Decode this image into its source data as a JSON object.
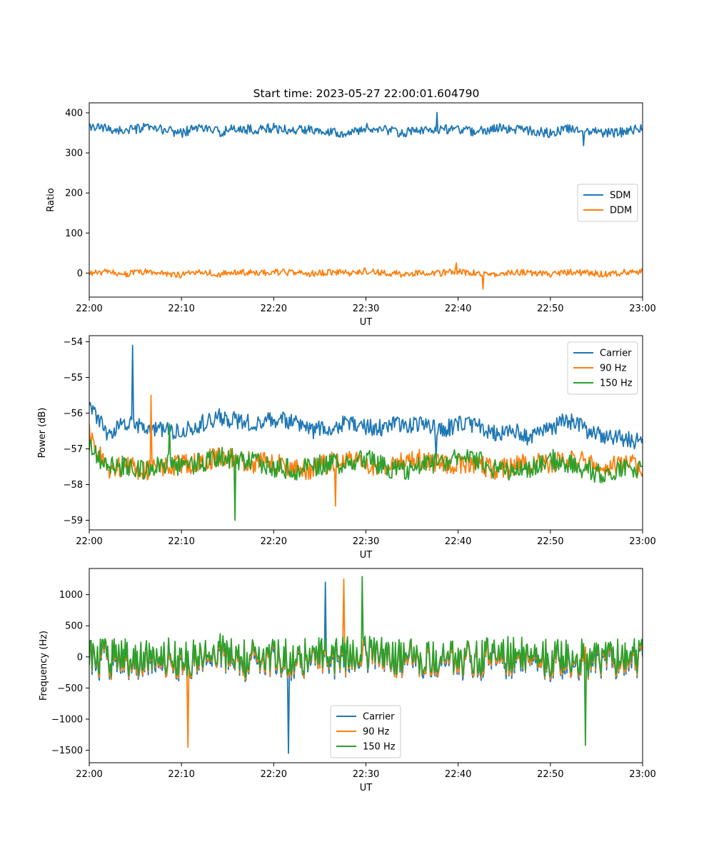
{
  "figure_title": "Start time: 2023-05-27 22:00:01.604790",
  "colors": {
    "blue": "#1f77b4",
    "orange": "#ff7f0e",
    "green": "#2ca02c"
  },
  "chart_data": [
    {
      "type": "line",
      "title": "Start time: 2023-05-27 22:00:01.604790",
      "xlabel": "UT",
      "ylabel": "Ratio",
      "x_range": [
        "22:00",
        "23:00"
      ],
      "xticks": [
        "22:00",
        "22:10",
        "22:20",
        "22:30",
        "22:40",
        "22:50",
        "23:00"
      ],
      "ylim": [
        -60,
        425
      ],
      "yticks": [
        0,
        100,
        200,
        300,
        400
      ],
      "ytick_labels": [
        "0",
        "100",
        "200",
        "300",
        "400"
      ],
      "legend_position": "center-right",
      "grid": false,
      "series": [
        {
          "name": "SDM",
          "color": "#1f77b4",
          "x_minutes": [
            0,
            2,
            4,
            6,
            8,
            10,
            12,
            14,
            16,
            18,
            20,
            22,
            24,
            26,
            28,
            30,
            32,
            34,
            36,
            38,
            40,
            42,
            44,
            46,
            48,
            50,
            52,
            54,
            56,
            58,
            60
          ],
          "values": [
            365,
            360,
            355,
            362,
            358,
            350,
            365,
            352,
            360,
            358,
            362,
            355,
            360,
            355,
            348,
            362,
            358,
            350,
            355,
            360,
            358,
            352,
            362,
            360,
            355,
            350,
            360,
            358,
            350,
            352,
            362
          ],
          "noise": 12,
          "peak_max": 401,
          "peak_min": 318
        },
        {
          "name": "DDM",
          "color": "#ff7f0e",
          "x_minutes": [
            0,
            2,
            4,
            6,
            8,
            10,
            12,
            14,
            16,
            18,
            20,
            22,
            24,
            26,
            28,
            30,
            32,
            34,
            36,
            38,
            40,
            42,
            44,
            46,
            48,
            50,
            52,
            54,
            56,
            58,
            60
          ],
          "values": [
            0,
            2,
            -2,
            3,
            0,
            -5,
            5,
            -3,
            2,
            0,
            3,
            0,
            -2,
            2,
            0,
            5,
            0,
            -3,
            2,
            0,
            3,
            0,
            -2,
            3,
            0,
            -3,
            2,
            0,
            -3,
            2,
            3
          ],
          "noise": 8,
          "peak_max": 25,
          "peak_min": -40
        }
      ]
    },
    {
      "type": "line",
      "xlabel": "UT",
      "ylabel": "Power (dB)",
      "x_range": [
        "22:00",
        "23:00"
      ],
      "xticks": [
        "22:00",
        "22:10",
        "22:20",
        "22:30",
        "22:40",
        "22:50",
        "23:00"
      ],
      "ylim": [
        -59.27,
        -53.83
      ],
      "yticks": [
        -59,
        -58,
        -57,
        -56,
        -55,
        -54
      ],
      "ytick_labels": [
        "−59",
        "−58",
        "−57",
        "−56",
        "−55",
        "−54"
      ],
      "legend_position": "top-right",
      "grid": false,
      "series": [
        {
          "name": "Carrier",
          "color": "#1f77b4",
          "x_minutes": [
            0,
            2,
            4,
            6,
            8,
            10,
            12,
            14,
            16,
            18,
            20,
            22,
            24,
            26,
            28,
            30,
            32,
            34,
            36,
            38,
            40,
            42,
            44,
            46,
            48,
            50,
            52,
            54,
            56,
            58,
            60
          ],
          "values": [
            -55.8,
            -56.6,
            -56.3,
            -56.4,
            -56.5,
            -56.5,
            -56.3,
            -56.1,
            -56.2,
            -56.3,
            -56.2,
            -56.2,
            -56.5,
            -56.4,
            -56.3,
            -56.4,
            -56.4,
            -56.3,
            -56.3,
            -56.5,
            -56.3,
            -56.3,
            -56.6,
            -56.5,
            -56.7,
            -56.4,
            -56.2,
            -56.5,
            -56.7,
            -56.7,
            -56.8
          ],
          "noise": 0.25,
          "peak_max": -54.1,
          "peak_min": -57.3
        },
        {
          "name": "90 Hz",
          "color": "#ff7f0e",
          "x_minutes": [
            0,
            2,
            4,
            6,
            8,
            10,
            12,
            14,
            16,
            18,
            20,
            22,
            24,
            26,
            28,
            30,
            32,
            34,
            36,
            38,
            40,
            42,
            44,
            46,
            48,
            50,
            52,
            54,
            56,
            58,
            60
          ],
          "values": [
            -56.6,
            -57.6,
            -57.5,
            -57.6,
            -57.5,
            -57.4,
            -57.4,
            -57.2,
            -57.3,
            -57.4,
            -57.4,
            -57.5,
            -57.6,
            -57.4,
            -57.3,
            -57.4,
            -57.5,
            -57.4,
            -57.3,
            -57.4,
            -57.4,
            -57.4,
            -57.6,
            -57.5,
            -57.4,
            -57.4,
            -57.3,
            -57.4,
            -57.5,
            -57.4,
            -57.5
          ],
          "noise": 0.3,
          "peak_max": -55.5,
          "peak_min": -58.6
        },
        {
          "name": "150 Hz",
          "color": "#2ca02c",
          "x_minutes": [
            0,
            2,
            4,
            6,
            8,
            10,
            12,
            14,
            16,
            18,
            20,
            22,
            24,
            26,
            28,
            30,
            32,
            34,
            36,
            38,
            40,
            42,
            44,
            46,
            48,
            50,
            52,
            54,
            56,
            58,
            60
          ],
          "values": [
            -57.0,
            -57.5,
            -57.5,
            -57.6,
            -57.4,
            -57.5,
            -57.4,
            -57.2,
            -57.3,
            -57.4,
            -57.5,
            -57.6,
            -57.5,
            -57.4,
            -57.4,
            -57.3,
            -57.5,
            -57.6,
            -57.5,
            -57.4,
            -57.2,
            -57.3,
            -57.6,
            -57.7,
            -57.5,
            -57.3,
            -57.4,
            -57.6,
            -57.7,
            -57.6,
            -57.6
          ],
          "noise": 0.3,
          "peak_max": -56.3,
          "peak_min": -59.0
        }
      ]
    },
    {
      "type": "line",
      "xlabel": "UT",
      "ylabel": "Frequency (Hz)",
      "x_range": [
        "22:00",
        "23:00"
      ],
      "xticks": [
        "22:00",
        "22:10",
        "22:20",
        "22:30",
        "22:40",
        "22:50",
        "23:00"
      ],
      "ylim": [
        -1700,
        1420
      ],
      "yticks": [
        -1500,
        -1000,
        -500,
        0,
        500,
        1000
      ],
      "ytick_labels": [
        "−1500",
        "−1000",
        "−500",
        "0",
        "500",
        "1000"
      ],
      "legend_position": "lower-center",
      "grid": false,
      "series": [
        {
          "name": "Carrier",
          "color": "#1f77b4",
          "x_minutes": [
            0,
            2,
            4,
            6,
            8,
            10,
            12,
            14,
            16,
            18,
            20,
            22,
            24,
            26,
            28,
            30,
            32,
            34,
            36,
            38,
            40,
            42,
            44,
            46,
            48,
            50,
            52,
            54,
            56,
            58,
            60
          ],
          "values": [
            -50,
            -80,
            -60,
            -100,
            -40,
            -80,
            -60,
            50,
            -80,
            -100,
            -40,
            -60,
            -80,
            -40,
            -50,
            -30,
            -60,
            -80,
            -40,
            -60,
            -50,
            -60,
            -70,
            -50,
            -60,
            -80,
            -50,
            -70,
            -100,
            -60,
            -80
          ],
          "noise": 300,
          "peak_max": 1200,
          "peak_min": -1550
        },
        {
          "name": "90 Hz",
          "color": "#ff7f0e",
          "x_minutes": [
            0,
            2,
            4,
            6,
            8,
            10,
            12,
            14,
            16,
            18,
            20,
            22,
            24,
            26,
            28,
            30,
            32,
            34,
            36,
            38,
            40,
            42,
            44,
            46,
            48,
            50,
            52,
            54,
            56,
            58,
            60
          ],
          "values": [
            -20,
            -50,
            -30,
            -70,
            -10,
            -50,
            -30,
            80,
            -50,
            -70,
            -10,
            -30,
            -50,
            -10,
            -20,
            0,
            -30,
            -50,
            -10,
            -30,
            -20,
            -30,
            -40,
            -20,
            -30,
            -50,
            -20,
            -40,
            -70,
            -30,
            -50
          ],
          "noise": 300,
          "peak_max": 1250,
          "peak_min": -1450
        },
        {
          "name": "150 Hz",
          "color": "#2ca02c",
          "x_minutes": [
            0,
            2,
            4,
            6,
            8,
            10,
            12,
            14,
            16,
            18,
            20,
            22,
            24,
            26,
            28,
            30,
            32,
            34,
            36,
            38,
            40,
            42,
            44,
            46,
            48,
            50,
            52,
            54,
            56,
            58,
            60
          ],
          "values": [
            20,
            -10,
            10,
            -30,
            30,
            -10,
            10,
            120,
            -10,
            -30,
            30,
            10,
            -10,
            30,
            20,
            40,
            10,
            -10,
            30,
            10,
            20,
            10,
            0,
            20,
            10,
            -10,
            20,
            0,
            -30,
            10,
            -10
          ],
          "noise": 300,
          "peak_max": 1290,
          "peak_min": -1420
        }
      ]
    }
  ]
}
